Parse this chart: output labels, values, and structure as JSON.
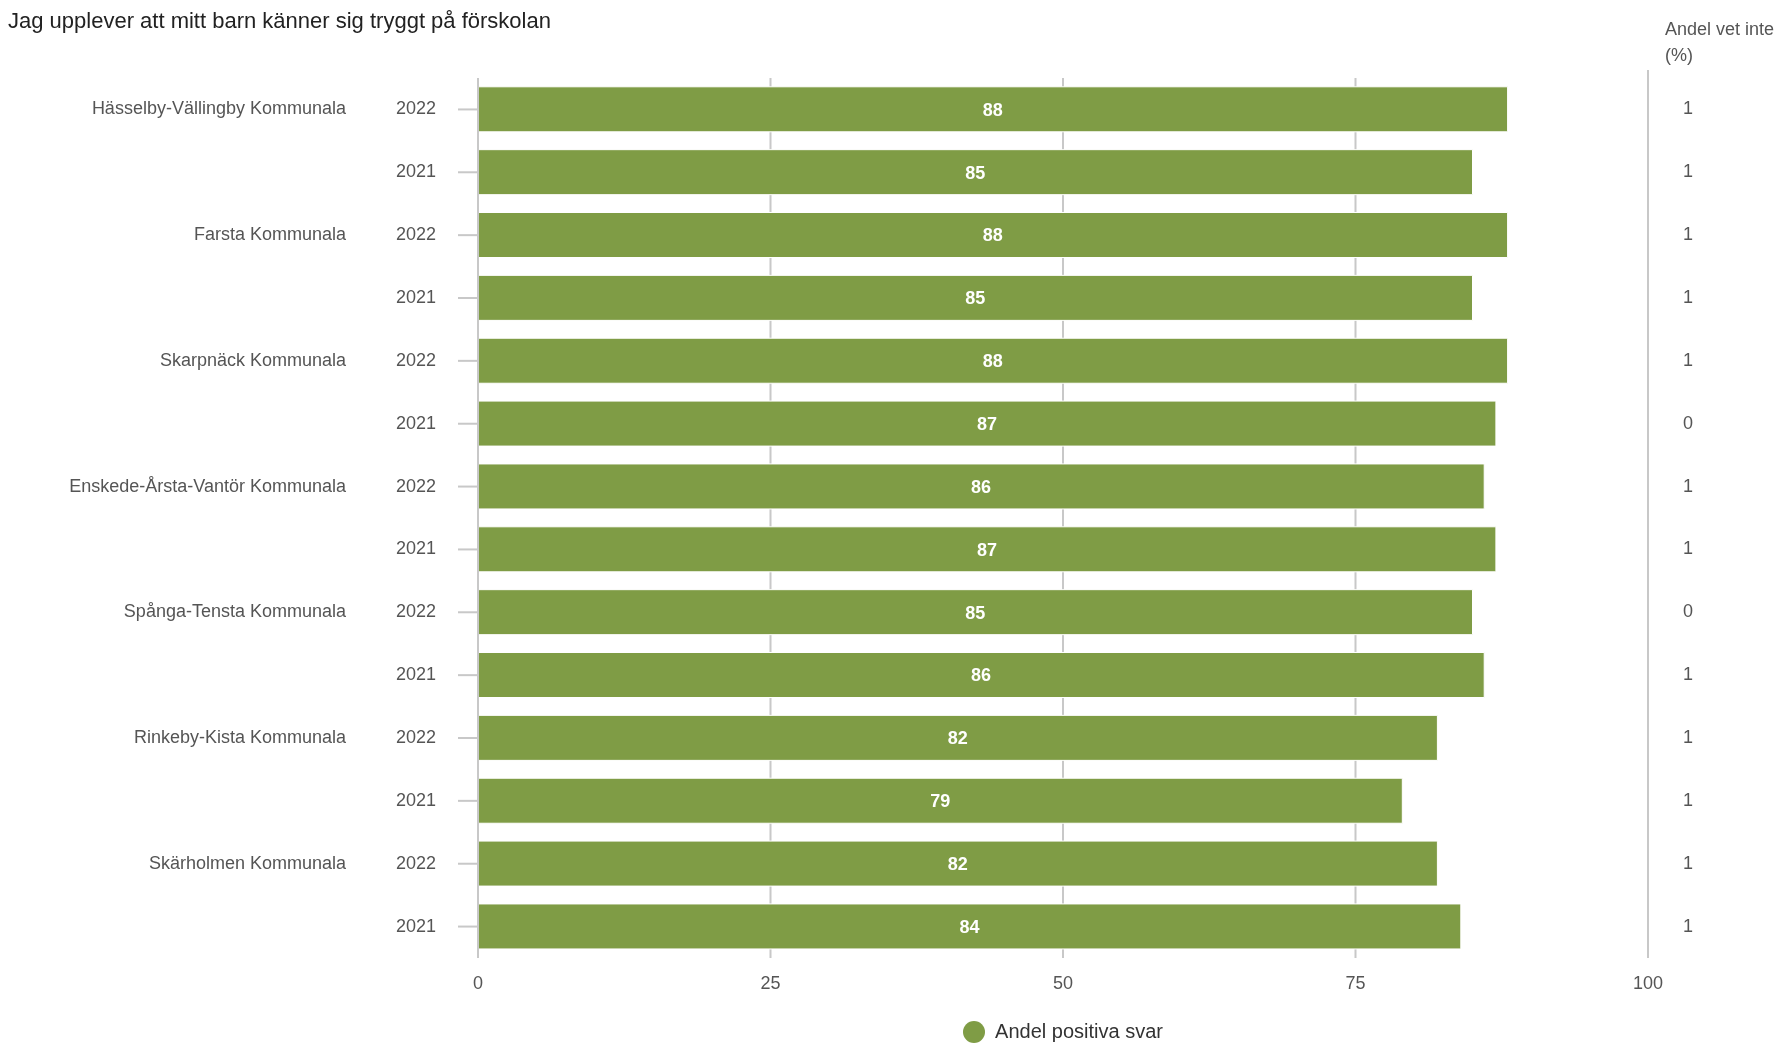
{
  "chart_data": [
    {
      "type": "bar",
      "orientation": "horizontal",
      "title": "Jag upplever att mitt barn känner sig tryggt på förskolan",
      "categories": [
        "2022",
        "2021",
        "2022",
        "2021",
        "2022",
        "2021",
        "2022",
        "2021",
        "2022",
        "2021",
        "2022",
        "2021",
        "2022",
        "2021"
      ],
      "annotations": [
        "Hässelby-Vällingby Kommunala",
        "Farsta Kommunala",
        "Skarpnäck Kommunala",
        "Enskede-Årsta-Vantör Kommunala",
        "Spånga-Tensta Kommunala",
        "Rinkeby-Kista Kommunala",
        "Skärholmen Kommunala"
      ],
      "series": [
        {
          "name": "Andel positiva svar",
          "color": "#7f9c45",
          "values": [
            88,
            85,
            88,
            85,
            88,
            87,
            86,
            87,
            85,
            86,
            82,
            79,
            82,
            84
          ]
        }
      ],
      "xlim": [
        0,
        100
      ],
      "xticks": [
        0,
        25,
        50,
        75,
        100
      ],
      "grid": "x",
      "legend": "bottom",
      "data_labels": true
    },
    {
      "type": "other",
      "title": "Andel vet inte (%)",
      "values": [
        1,
        1,
        1,
        1,
        1,
        0,
        1,
        1,
        0,
        1,
        1,
        1,
        1,
        1
      ],
      "data_labels": true
    }
  ]
}
